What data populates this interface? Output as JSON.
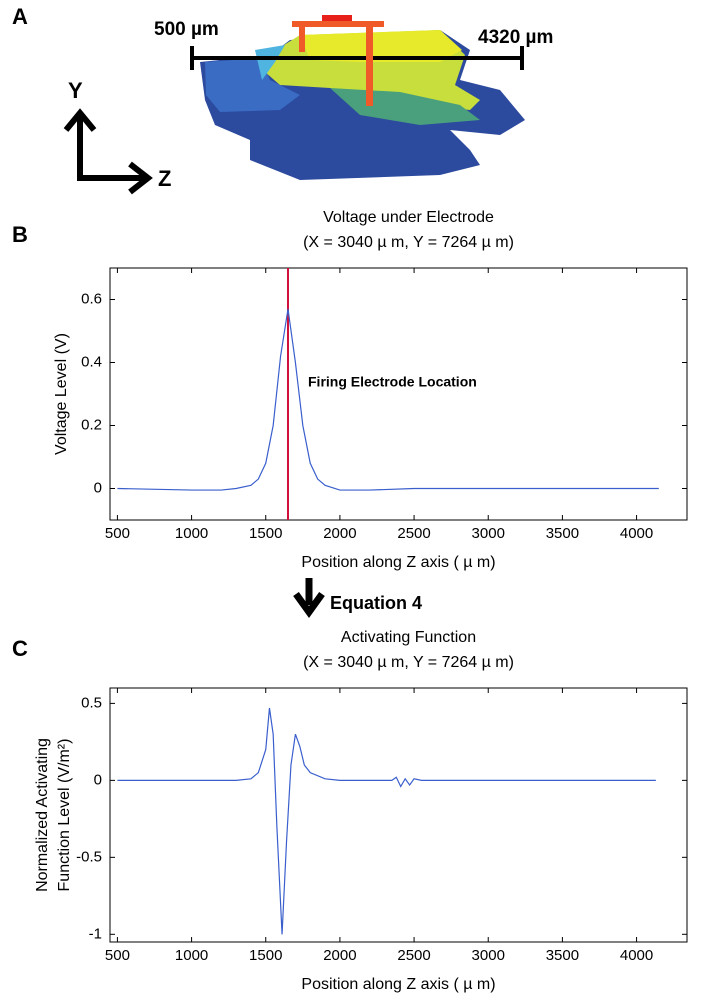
{
  "panel_labels": [
    "A",
    "B",
    "C"
  ],
  "panel_a": {
    "scale_left": "500 µm",
    "scale_right": "4320 µm",
    "axis_y": "Y",
    "axis_z": "Z"
  },
  "arrow_label": "Equation 4",
  "chart_data": [
    {
      "type": "line",
      "title": "Voltage under Electrode",
      "subtitle": "(X = 3040  µ m, Y = 7264  µ m)",
      "x_label": "Position along Z axis (  µ m)",
      "y_label": [
        "Voltage Level (V)"
      ],
      "annotation": "Firing Electrode Location",
      "marker_x": 1650,
      "marker_color": "#d0103a",
      "x": [
        500,
        1000,
        1200,
        1300,
        1400,
        1450,
        1500,
        1550,
        1600,
        1650,
        1700,
        1750,
        1800,
        1850,
        1900,
        2000,
        2200,
        2500,
        3000,
        3500,
        4150
      ],
      "series": [
        {
          "color": "#3a5fcd",
          "values": [
            0,
            -0.005,
            -0.005,
            0,
            0.01,
            0.03,
            0.08,
            0.2,
            0.42,
            0.57,
            0.4,
            0.2,
            0.08,
            0.03,
            0.01,
            -0.005,
            -0.005,
            0,
            0,
            0,
            0
          ]
        }
      ],
      "xlim": [
        450,
        4340
      ],
      "ylim": [
        -0.1,
        0.7
      ],
      "xticks": [
        500,
        1000,
        1500,
        2000,
        2500,
        3000,
        3500,
        4000
      ],
      "yticks": [
        0,
        0.2,
        0.4,
        0.6
      ]
    },
    {
      "type": "line",
      "title": "Activating Function",
      "subtitle": "(X = 3040  µ m, Y = 7264  µ m)",
      "x_label": "Position along Z axis (  µ m)",
      "y_label": [
        "Normalized Activating",
        "Function Level (V/m²)"
      ],
      "x": [
        500,
        1300,
        1400,
        1450,
        1500,
        1525,
        1550,
        1575,
        1610,
        1640,
        1670,
        1700,
        1730,
        1760,
        1800,
        1900,
        2000,
        2350,
        2380,
        2410,
        2440,
        2470,
        2500,
        2550,
        4130
      ],
      "series": [
        {
          "color": "#3a5fcd",
          "values": [
            0,
            0,
            0.01,
            0.05,
            0.2,
            0.47,
            0.3,
            -0.3,
            -1.0,
            -0.4,
            0.1,
            0.3,
            0.22,
            0.1,
            0.05,
            0.01,
            0,
            0,
            0.02,
            -0.04,
            0.01,
            -0.03,
            0.01,
            0,
            0
          ]
        }
      ],
      "xlim": [
        450,
        4340
      ],
      "ylim": [
        -1.05,
        0.6
      ],
      "xticks": [
        500,
        1000,
        1500,
        2000,
        2500,
        3000,
        3500,
        4000
      ],
      "yticks": [
        -1,
        -0.5,
        0,
        0.5
      ]
    }
  ]
}
